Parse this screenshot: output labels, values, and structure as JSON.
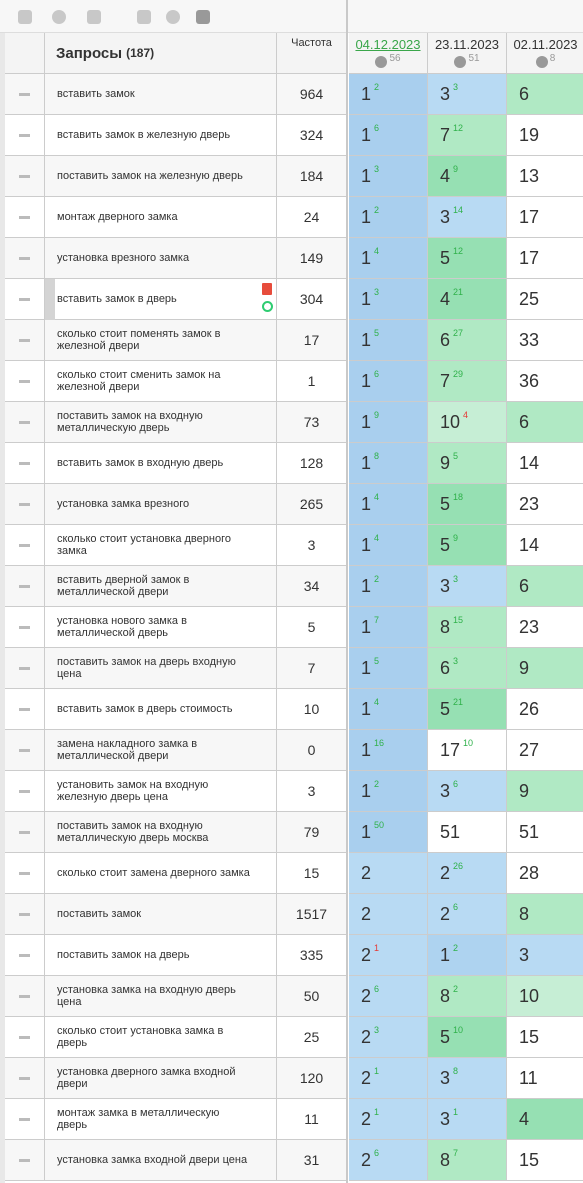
{
  "header": {
    "query_title": "Запросы",
    "query_count": "(187)",
    "frequency": "Частота",
    "dates": [
      {
        "date": "04.12.2023",
        "count": 56,
        "active": true
      },
      {
        "date": "23.11.2023",
        "count": 51
      },
      {
        "date": "02.11.2023",
        "count": 8
      }
    ]
  },
  "rows": [
    {
      "query": "вставить замок",
      "frequency": 964,
      "positions": [
        {
          "pos": 1,
          "delta": 2,
          "dir": "up"
        },
        {
          "pos": 3,
          "delta": 3,
          "dir": "up"
        },
        {
          "pos": 6
        }
      ]
    },
    {
      "query": "вставить замок в железную дверь",
      "frequency": 324,
      "positions": [
        {
          "pos": 1,
          "delta": 6,
          "dir": "up"
        },
        {
          "pos": 7,
          "delta": 12,
          "dir": "up"
        },
        {
          "pos": 19
        }
      ]
    },
    {
      "query": "поставить замок на железную дверь",
      "frequency": 184,
      "positions": [
        {
          "pos": 1,
          "delta": 3,
          "dir": "up"
        },
        {
          "pos": 4,
          "delta": 9,
          "dir": "up"
        },
        {
          "pos": 13
        }
      ]
    },
    {
      "query": "монтаж дверного замка",
      "frequency": 24,
      "positions": [
        {
          "pos": 1,
          "delta": 2,
          "dir": "up"
        },
        {
          "pos": 3,
          "delta": 14,
          "dir": "up"
        },
        {
          "pos": 17
        }
      ]
    },
    {
      "query": "установка врезного замка",
      "frequency": 149,
      "positions": [
        {
          "pos": 1,
          "delta": 4,
          "dir": "up"
        },
        {
          "pos": 5,
          "delta": 12,
          "dir": "up"
        },
        {
          "pos": 17
        }
      ]
    },
    {
      "query": "вставить замок в дверь",
      "frequency": 304,
      "highlighted": true,
      "positions": [
        {
          "pos": 1,
          "delta": 3,
          "dir": "up"
        },
        {
          "pos": 4,
          "delta": 21,
          "dir": "up"
        },
        {
          "pos": 25
        }
      ]
    },
    {
      "query": "сколько стоит поменять замок в железной двери",
      "frequency": 17,
      "positions": [
        {
          "pos": 1,
          "delta": 5,
          "dir": "up"
        },
        {
          "pos": 6,
          "delta": 27,
          "dir": "up"
        },
        {
          "pos": 33
        }
      ]
    },
    {
      "query": "сколько стоит сменить замок на железной двери",
      "frequency": 1,
      "positions": [
        {
          "pos": 1,
          "delta": 6,
          "dir": "up"
        },
        {
          "pos": 7,
          "delta": 29,
          "dir": "up"
        },
        {
          "pos": 36
        }
      ]
    },
    {
      "query": "поставить замок на входную металлическую дверь",
      "frequency": 73,
      "positions": [
        {
          "pos": 1,
          "delta": 9,
          "dir": "up"
        },
        {
          "pos": 10,
          "delta": 4,
          "dir": "down"
        },
        {
          "pos": 6
        }
      ]
    },
    {
      "query": "вставить замок в входную дверь",
      "frequency": 128,
      "positions": [
        {
          "pos": 1,
          "delta": 8,
          "dir": "up"
        },
        {
          "pos": 9,
          "delta": 5,
          "dir": "up"
        },
        {
          "pos": 14
        }
      ]
    },
    {
      "query": "установка замка врезного",
      "frequency": 265,
      "positions": [
        {
          "pos": 1,
          "delta": 4,
          "dir": "up"
        },
        {
          "pos": 5,
          "delta": 18,
          "dir": "up"
        },
        {
          "pos": 23
        }
      ]
    },
    {
      "query": "сколько стоит установка дверного замка",
      "frequency": 3,
      "positions": [
        {
          "pos": 1,
          "delta": 4,
          "dir": "up"
        },
        {
          "pos": 5,
          "delta": 9,
          "dir": "up"
        },
        {
          "pos": 14
        }
      ]
    },
    {
      "query": "вставить дверной замок в металлической двери",
      "frequency": 34,
      "positions": [
        {
          "pos": 1,
          "delta": 2,
          "dir": "up"
        },
        {
          "pos": 3,
          "delta": 3,
          "dir": "up"
        },
        {
          "pos": 6
        }
      ]
    },
    {
      "query": "установка нового замка в металлической дверь",
      "frequency": 5,
      "positions": [
        {
          "pos": 1,
          "delta": 7,
          "dir": "up"
        },
        {
          "pos": 8,
          "delta": 15,
          "dir": "up"
        },
        {
          "pos": 23
        }
      ]
    },
    {
      "query": "поставить замок на дверь входную цена",
      "frequency": 7,
      "positions": [
        {
          "pos": 1,
          "delta": 5,
          "dir": "up"
        },
        {
          "pos": 6,
          "delta": 3,
          "dir": "up"
        },
        {
          "pos": 9
        }
      ]
    },
    {
      "query": "вставить замок в дверь стоимость",
      "frequency": 10,
      "positions": [
        {
          "pos": 1,
          "delta": 4,
          "dir": "up"
        },
        {
          "pos": 5,
          "delta": 21,
          "dir": "up"
        },
        {
          "pos": 26
        }
      ]
    },
    {
      "query": "замена накладного замка в металлической двери",
      "frequency": 0,
      "positions": [
        {
          "pos": 1,
          "delta": 16,
          "dir": "up"
        },
        {
          "pos": 17,
          "delta": 10,
          "dir": "up"
        },
        {
          "pos": 27
        }
      ]
    },
    {
      "query": "установить замок на входную железную дверь цена",
      "frequency": 3,
      "positions": [
        {
          "pos": 1,
          "delta": 2,
          "dir": "up"
        },
        {
          "pos": 3,
          "delta": 6,
          "dir": "up"
        },
        {
          "pos": 9
        }
      ]
    },
    {
      "query": "поставить замок на входную металлическую дверь москва",
      "frequency": 79,
      "positions": [
        {
          "pos": 1,
          "delta": 50,
          "dir": "up"
        },
        {
          "pos": 51
        },
        {
          "pos": 51
        }
      ]
    },
    {
      "query": "сколько стоит замена дверного замка",
      "frequency": 15,
      "positions": [
        {
          "pos": 2
        },
        {
          "pos": 2,
          "delta": 26,
          "dir": "up"
        },
        {
          "pos": 28
        }
      ]
    },
    {
      "query": "поставить замок",
      "frequency": 1517,
      "positions": [
        {
          "pos": 2
        },
        {
          "pos": 2,
          "delta": 6,
          "dir": "up"
        },
        {
          "pos": 8
        }
      ]
    },
    {
      "query": "поставить замок на дверь",
      "frequency": 335,
      "positions": [
        {
          "pos": 2,
          "delta": 1,
          "dir": "down"
        },
        {
          "pos": 1,
          "delta": 2,
          "dir": "up"
        },
        {
          "pos": 3
        }
      ]
    },
    {
      "query": "установка замка на входную дверь цена",
      "frequency": 50,
      "positions": [
        {
          "pos": 2,
          "delta": 6,
          "dir": "up"
        },
        {
          "pos": 8,
          "delta": 2,
          "dir": "up"
        },
        {
          "pos": 10
        }
      ]
    },
    {
      "query": "сколько стоит установка замка в дверь",
      "frequency": 25,
      "positions": [
        {
          "pos": 2,
          "delta": 3,
          "dir": "up"
        },
        {
          "pos": 5,
          "delta": 10,
          "dir": "up"
        },
        {
          "pos": 15
        }
      ]
    },
    {
      "query": "установка дверного замка входной двери",
      "frequency": 120,
      "positions": [
        {
          "pos": 2,
          "delta": 1,
          "dir": "up"
        },
        {
          "pos": 3,
          "delta": 8,
          "dir": "up"
        },
        {
          "pos": 11
        }
      ]
    },
    {
      "query": "монтаж замка в металлическую дверь",
      "frequency": 11,
      "positions": [
        {
          "pos": 2,
          "delta": 1,
          "dir": "up"
        },
        {
          "pos": 3,
          "delta": 1,
          "dir": "up"
        },
        {
          "pos": 4
        }
      ]
    },
    {
      "query": "установка замка входной двери цена",
      "frequency": 31,
      "positions": [
        {
          "pos": 2,
          "delta": 6,
          "dir": "up"
        },
        {
          "pos": 8,
          "delta": 7,
          "dir": "up"
        },
        {
          "pos": 15
        }
      ]
    }
  ]
}
